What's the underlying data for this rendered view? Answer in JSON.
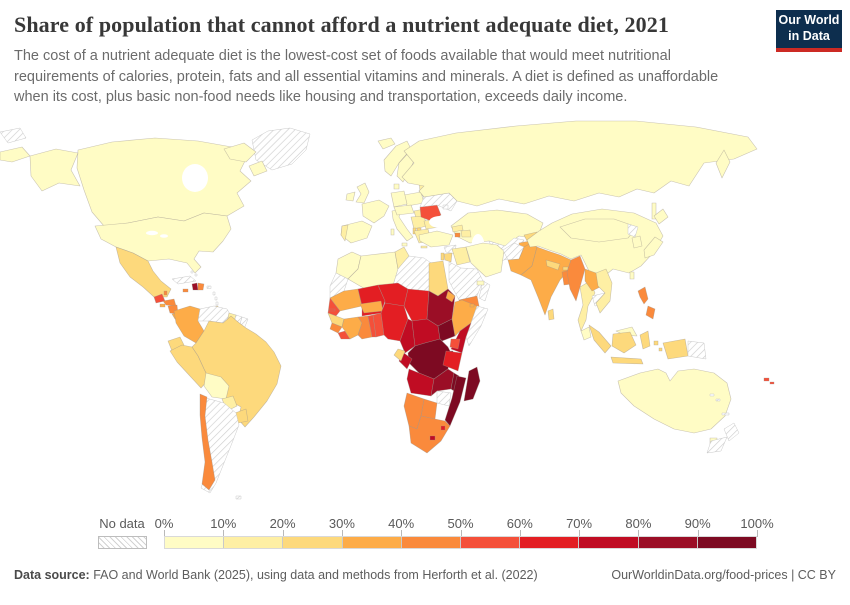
{
  "header": {
    "title": "Share of population that cannot afford a nutrient adequate diet, 2021",
    "subtitle": "The cost of a nutrient adequate diet is the lowest-cost set of foods available that would meet nutritional requirements of calories, protein, fats and all essential vitamins and minerals. A diet is defined as unaffordable when its cost, plus basic non-food needs like housing and transportation, exceeds daily income.",
    "logo": {
      "line1": "Our World",
      "line2": "in Data",
      "bg_color": "#0d2e4e",
      "accent_color": "#cc2a24"
    }
  },
  "legend": {
    "no_data_label": "No data",
    "tick_labels": [
      "0%",
      "10%",
      "20%",
      "30%",
      "40%",
      "50%",
      "60%",
      "70%",
      "80%",
      "90%",
      "100%"
    ],
    "bins": [
      {
        "range": "0-10%",
        "color": "#FFFCC5"
      },
      {
        "range": "10-20%",
        "color": "#FEEFA4"
      },
      {
        "range": "20-30%",
        "color": "#FDD97C"
      },
      {
        "range": "30-40%",
        "color": "#FDAC48"
      },
      {
        "range": "40-50%",
        "color": "#FA8A3C"
      },
      {
        "range": "50-60%",
        "color": "#F4503A"
      },
      {
        "range": "60-70%",
        "color": "#E31E23"
      },
      {
        "range": "70-80%",
        "color": "#C00C23"
      },
      {
        "range": "80-90%",
        "color": "#9B0E26"
      },
      {
        "range": "90-100%",
        "color": "#7D0A22"
      }
    ]
  },
  "map": {
    "year": "2021",
    "ocean_color": "#ffffff",
    "border_color": "#9c948a",
    "country_bins": {
      "greenland": "no_data",
      "canada": 0,
      "united-states": 0,
      "mexico": 2,
      "guatemala": 5,
      "belize": 4,
      "honduras": 4,
      "el-salvador": 3,
      "nicaragua": 4,
      "costa-rica": 3,
      "panama": 4,
      "cuba": "no_data",
      "jamaica": 4,
      "haiti": 8,
      "dominican-republic": 4,
      "puerto-rico": "no_data",
      "lesser-antilles": "no_data",
      "bahamas": "no_data",
      "trinidad": 2,
      "colombia": 3,
      "venezuela": "no_data",
      "guyana": 1,
      "suriname": "no_data",
      "french-guiana": "no_data",
      "ecuador": 2,
      "peru": 2,
      "brazil": 2,
      "bolivia": 0,
      "paraguay": 1,
      "uruguay": 2,
      "argentina": "no_data",
      "chile": 4,
      "falkland-islands": "no_data",
      "iceland": 0,
      "ireland": 0,
      "united-kingdom": 0,
      "norway": 0,
      "sweden": 0,
      "finland": 0,
      "denmark": 0,
      "baltic-states": 1,
      "poland": 0,
      "germany": 0,
      "france": 0,
      "spain": 0,
      "portugal": 1,
      "italy": 0,
      "central-europe": 0,
      "hungary": 1,
      "balkans": 1,
      "albania": 2,
      "north-macedonia": 2,
      "greece": 1,
      "romania": 5,
      "bulgaria": 1,
      "ukraine": "no_data",
      "belarus": 0,
      "moldova": "no_data",
      "russia": 0,
      "arctic-islands": "no_data",
      "kazakhstan": 0,
      "uzbekistan": "no_data",
      "turkmenistan": "no_data",
      "kyrgyzstan": 2,
      "tajikistan": 3,
      "georgia": 1,
      "armenia": 4,
      "azerbaijan": 1,
      "turkey": 0,
      "syria": "no_data",
      "israel": 2,
      "jordan": 2,
      "iraq": 1,
      "iran": 0,
      "afghanistan": "no_data",
      "saudi-arabia": "no_data",
      "yemen": 4,
      "oman": "no_data",
      "uae": 0,
      "pakistan": 3,
      "india": 3,
      "nepal": 2,
      "bhutan": 2,
      "bangladesh": 4,
      "sri-lanka": 2,
      "myanmar": 4,
      "thailand": 1,
      "laos": 3,
      "cambodia": "no_data",
      "vietnam": 1,
      "china": 0,
      "mongolia": 0,
      "north-korea": "no_data",
      "south-korea": 0,
      "japan": 0,
      "taiwan": 0,
      "philippines": 4,
      "malaysia": 0,
      "indonesia": 2,
      "papua-new-guinea": "no_data",
      "australia": 0,
      "new-zealand": "no_data",
      "fiji": 5,
      "solomon-islands": "no_data",
      "new-caledonia": "no_data",
      "morocco": 0,
      "western-sahara": "no_data",
      "algeria": 0,
      "tunisia": 1,
      "libya": "no_data",
      "egypt": 2,
      "mauritania": 3,
      "mali": 6,
      "niger": 6,
      "chad": 6,
      "sudan": 8,
      "eritrea": 3,
      "djibouti": 3,
      "senegal": 5,
      "gambia": 5,
      "guinea": 2,
      "sierra-leone": 4,
      "liberia": 5,
      "ivory-coast": 3,
      "ghana": 4,
      "togo": 5,
      "benin": 5,
      "burkina-faso": 3,
      "nigeria": 6,
      "cameroon": 7,
      "central-african-republic": 7,
      "south-sudan": 9,
      "ethiopia": 3,
      "somalia": "no_data",
      "kenya": 7,
      "uganda": 5,
      "rwanda": 8,
      "burundi": 8,
      "drc": 9,
      "congo": 7,
      "gabon": 2,
      "tanzania": 6,
      "angola": 7,
      "zambia": 8,
      "malawi": 9,
      "mozambique": 9,
      "zimbabwe": "no_data",
      "botswana": 4,
      "namibia": 4,
      "south-africa": 4,
      "lesotho": 7,
      "eswatini": 6,
      "madagascar": 9
    }
  },
  "footer": {
    "source_label": "Data source:",
    "source_text": " FAO and World Bank (2025), using data and methods from Herforth et al. (2022)",
    "credit": "OurWorldinData.org/food-prices | CC BY"
  }
}
